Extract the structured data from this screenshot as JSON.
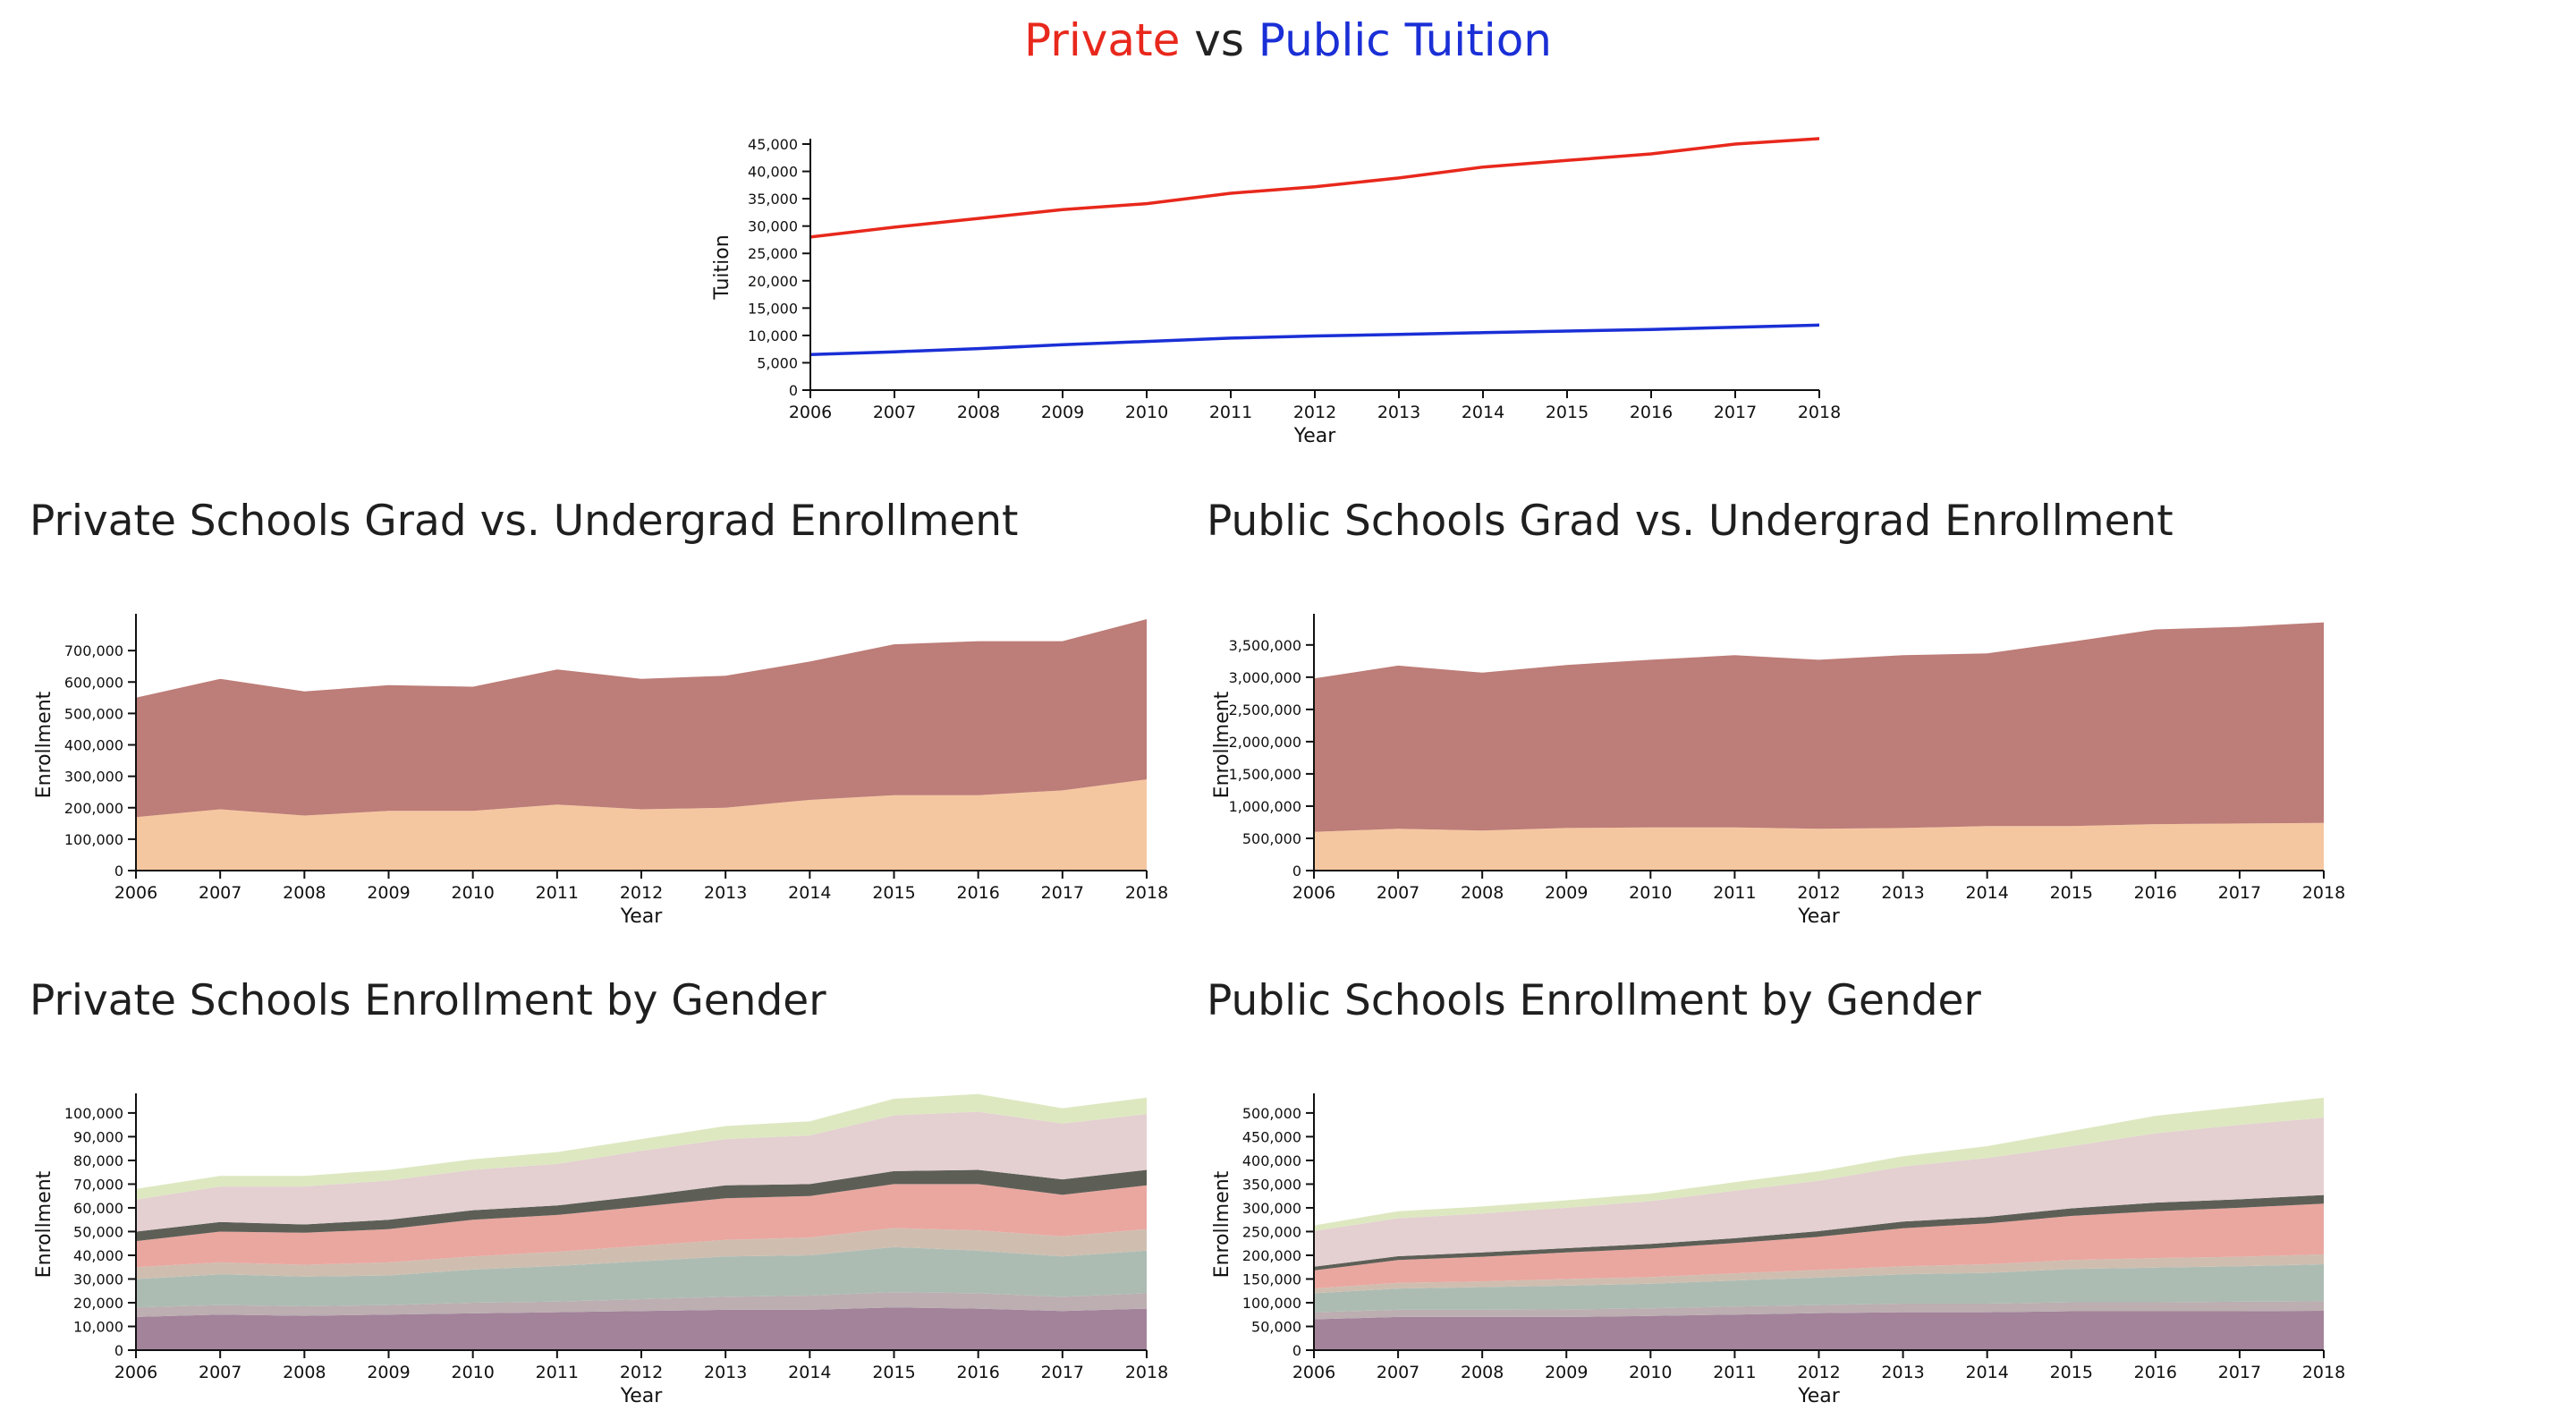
{
  "header": {
    "title_private": "Private",
    "title_vs": "vs",
    "title_public": "Public Tuition"
  },
  "sections": {
    "private_grad": "Private Schools Grad vs. Undergrad Enrollment",
    "public_grad": "Public Schools Grad vs. Undergrad Enrollment",
    "private_gender": "Private Schools Enrollment by Gender",
    "public_gender": "Public Schools Enrollment by Gender"
  },
  "colors": {
    "private": "#e8281c",
    "public": "#1a2fd6"
  },
  "chart_data": [
    {
      "id": "tuition",
      "type": "line",
      "xlabel": "Year",
      "ylabel": "Tuition",
      "x": [
        2006,
        2007,
        2008,
        2009,
        2010,
        2011,
        2012,
        2013,
        2014,
        2015,
        2016,
        2017,
        2018
      ],
      "ylim": [
        0,
        45000
      ],
      "yticks": [
        0,
        5000,
        10000,
        15000,
        20000,
        25000,
        30000,
        35000,
        40000,
        45000
      ],
      "series": [
        {
          "color": "#e8281c",
          "values": [
            28000,
            29800,
            31400,
            33000,
            34100,
            36000,
            37200,
            38800,
            40800,
            42000,
            43200,
            45000,
            46000
          ]
        },
        {
          "color": "#1a2fd6",
          "values": [
            6500,
            7000,
            7600,
            8300,
            8900,
            9500,
            9900,
            10200,
            10500,
            10800,
            11100,
            11500,
            11900
          ]
        }
      ]
    },
    {
      "id": "private_grad",
      "type": "area",
      "stacked": true,
      "xlabel": "Year",
      "ylabel": "Enrollment",
      "x": [
        2006,
        2007,
        2008,
        2009,
        2010,
        2011,
        2012,
        2013,
        2014,
        2015,
        2016,
        2017,
        2018
      ],
      "ylim": [
        0,
        800000
      ],
      "yticks": [
        0,
        100000,
        200000,
        300000,
        400000,
        500000,
        600000,
        700000
      ],
      "series": [
        {
          "color": "#f5c7a0",
          "values": [
            170000,
            195000,
            175000,
            190000,
            190000,
            210000,
            195000,
            200000,
            225000,
            240000,
            240000,
            255000,
            290000
          ]
        },
        {
          "color": "#bd7d78",
          "values": [
            380000,
            415000,
            395000,
            400000,
            395000,
            430000,
            415000,
            420000,
            440000,
            480000,
            490000,
            475000,
            510000
          ]
        }
      ]
    },
    {
      "id": "public_grad",
      "type": "area",
      "stacked": true,
      "xlabel": "Year",
      "ylabel": "Enrollment",
      "x": [
        2006,
        2007,
        2008,
        2009,
        2010,
        2011,
        2012,
        2013,
        2014,
        2015,
        2016,
        2017,
        2018
      ],
      "ylim": [
        0,
        3900000
      ],
      "yticks": [
        0,
        500000,
        1000000,
        1500000,
        2000000,
        2500000,
        3000000,
        3500000
      ],
      "series": [
        {
          "color": "#f5c7a0",
          "values": [
            600000,
            650000,
            620000,
            660000,
            670000,
            670000,
            650000,
            660000,
            690000,
            690000,
            720000,
            730000,
            740000
          ]
        },
        {
          "color": "#bd7d78",
          "values": [
            2380000,
            2530000,
            2450000,
            2530000,
            2600000,
            2670000,
            2620000,
            2680000,
            2680000,
            2860000,
            3020000,
            3050000,
            3110000
          ]
        }
      ]
    },
    {
      "id": "private_gender",
      "type": "area",
      "stacked": true,
      "xlabel": "Year",
      "ylabel": "Enrollment",
      "x": [
        2006,
        2007,
        2008,
        2009,
        2010,
        2011,
        2012,
        2013,
        2014,
        2015,
        2016,
        2017,
        2018
      ],
      "ylim": [
        0,
        106000
      ],
      "yticks": [
        0,
        10000,
        20000,
        30000,
        40000,
        50000,
        60000,
        70000,
        80000,
        90000,
        100000
      ],
      "series": [
        {
          "color": "#a2839a",
          "values": [
            14000,
            15000,
            14500,
            15000,
            15500,
            16000,
            16500,
            17000,
            17000,
            18000,
            17500,
            16500,
            17500
          ]
        },
        {
          "color": "#bcaeb1",
          "values": [
            4000,
            4000,
            4000,
            4000,
            4500,
            4500,
            5000,
            5500,
            6000,
            6500,
            6500,
            6000,
            6500
          ]
        },
        {
          "color": "#adbcb3",
          "values": [
            12000,
            13000,
            12500,
            12500,
            14000,
            15000,
            16000,
            17000,
            17000,
            19000,
            18000,
            17000,
            18000
          ]
        },
        {
          "color": "#cfbeb0",
          "values": [
            5000,
            5000,
            5000,
            5500,
            5500,
            6000,
            6500,
            7000,
            7500,
            8000,
            8500,
            8500,
            9000
          ]
        },
        {
          "color": "#e9a7a0",
          "values": [
            11000,
            13000,
            13500,
            14000,
            15500,
            15500,
            16500,
            17500,
            17500,
            18500,
            19500,
            17500,
            18500
          ]
        },
        {
          "color": "#5d5f56",
          "values": [
            4000,
            4000,
            3500,
            4000,
            4000,
            4000,
            4500,
            5500,
            5000,
            5500,
            6000,
            6500,
            6500
          ]
        },
        {
          "color": "#e4cfd1",
          "values": [
            13500,
            15000,
            16000,
            16500,
            17000,
            17500,
            19000,
            19500,
            20500,
            23500,
            24500,
            23500,
            23500
          ]
        },
        {
          "color": "#dde8c1",
          "values": [
            4500,
            4500,
            4500,
            4500,
            4500,
            5000,
            5000,
            5500,
            6000,
            7000,
            7500,
            6500,
            7000
          ]
        }
      ]
    },
    {
      "id": "public_gender",
      "type": "area",
      "stacked": true,
      "xlabel": "Year",
      "ylabel": "Enrollment",
      "x": [
        2006,
        2007,
        2008,
        2009,
        2010,
        2011,
        2012,
        2013,
        2014,
        2015,
        2016,
        2017,
        2018
      ],
      "ylim": [
        0,
        530000
      ],
      "yticks": [
        0,
        50000,
        100000,
        150000,
        200000,
        250000,
        300000,
        350000,
        400000,
        450000,
        500000
      ],
      "series": [
        {
          "color": "#a2839a",
          "values": [
            65000,
            70000,
            70000,
            70000,
            72000,
            75000,
            78000,
            80000,
            80000,
            82000,
            82000,
            82000,
            83000
          ]
        },
        {
          "color": "#bcaeb1",
          "values": [
            15000,
            15000,
            15000,
            16000,
            16000,
            17000,
            17000,
            18000,
            18000,
            19000,
            19000,
            20000,
            20000
          ]
        },
        {
          "color": "#adbcb3",
          "values": [
            40000,
            45000,
            48000,
            50000,
            52000,
            55000,
            58000,
            62000,
            65000,
            70000,
            73000,
            75000,
            78000
          ]
        },
        {
          "color": "#cfbeb0",
          "values": [
            10000,
            12000,
            12000,
            14000,
            14000,
            15000,
            16000,
            17000,
            18000,
            19000,
            20000,
            20000,
            21000
          ]
        },
        {
          "color": "#e9a7a0",
          "values": [
            38000,
            48000,
            52000,
            56000,
            60000,
            64000,
            70000,
            80000,
            86000,
            93000,
            99000,
            103000,
            107000
          ]
        },
        {
          "color": "#5d5f56",
          "values": [
            8000,
            8000,
            9000,
            9000,
            10000,
            10000,
            12000,
            14000,
            14000,
            16000,
            18000,
            18000,
            18000
          ]
        },
        {
          "color": "#e4cfd1",
          "values": [
            75000,
            80000,
            82000,
            85000,
            90000,
            100000,
            106000,
            116000,
            124000,
            131000,
            146000,
            157000,
            163000
          ]
        },
        {
          "color": "#dde8c1",
          "values": [
            12000,
            15000,
            15000,
            16000,
            16000,
            18000,
            20000,
            22000,
            25000,
            32000,
            37000,
            38000,
            42000
          ]
        }
      ]
    }
  ]
}
